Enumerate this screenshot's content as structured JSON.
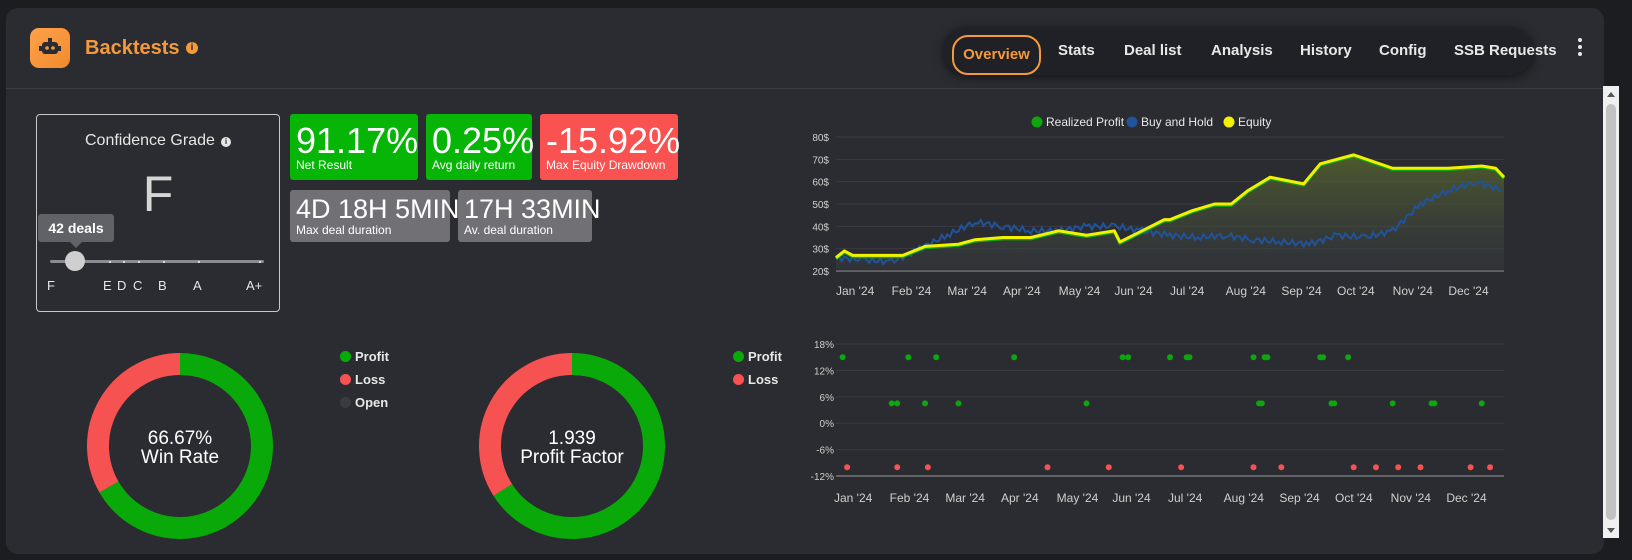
{
  "header": {
    "title": "Backtests",
    "info_icon": "info-icon",
    "nav_tabs": [
      {
        "label": "Overview",
        "active": true
      },
      {
        "label": "Stats"
      },
      {
        "label": "Deal list"
      },
      {
        "label": "Analysis"
      },
      {
        "label": "History"
      },
      {
        "label": "Config"
      },
      {
        "label": "SSB Requests"
      }
    ],
    "accent_color": "#f59a3c"
  },
  "confidence": {
    "title": "Confidence Grade",
    "grade": "F",
    "deals_label": "42 deals",
    "scale_labels": [
      "F",
      "E",
      "D",
      "C",
      "B",
      "A",
      "A+"
    ]
  },
  "metrics": [
    {
      "value": "91.17%",
      "label": "Net Result",
      "color": "#07b507"
    },
    {
      "value": "0.25%",
      "label": "Avg daily return",
      "color": "#07b507"
    },
    {
      "value": "-15.92%",
      "label": "Max Equity Drawdown",
      "color": "#fa5151"
    },
    {
      "value": "4D 18H 5MIN",
      "label": "Max deal duration",
      "color": "#717175"
    },
    {
      "value": "17H 33MIN",
      "label": "Av. deal duration",
      "color": "#717175"
    }
  ],
  "win_rate": {
    "value_text": "66.67%",
    "label": "Win Rate",
    "profit_fraction": 0.6667,
    "legend": [
      {
        "label": "Profit",
        "color": "#09a909"
      },
      {
        "label": "Loss",
        "color": "#f75252"
      },
      {
        "label": "Open",
        "color": "#3a3b3f"
      }
    ]
  },
  "profit_factor": {
    "value_text": "1.939",
    "label": "Profit Factor",
    "profit_fraction": 0.66,
    "legend": [
      {
        "label": "Profit",
        "color": "#09a909"
      },
      {
        "label": "Loss",
        "color": "#f75252"
      }
    ]
  },
  "chart_data": [
    {
      "type": "line",
      "legend": [
        {
          "name": "Realized Profit",
          "color": "#0ca70c"
        },
        {
          "name": "Buy and Hold",
          "color": "#21539b"
        },
        {
          "name": "Equity",
          "color": "#f2f200"
        }
      ],
      "legend_position": "top-center",
      "y_ticks": [
        "80$",
        "70$",
        "60$",
        "50$",
        "40$",
        "30$",
        "20$"
      ],
      "x_ticks": [
        "Jan '24",
        "Feb '24",
        "Mar '24",
        "Apr '24",
        "May '24",
        "Jun '24",
        "Jul '24",
        "Aug '24",
        "Sep '24",
        "Oct '24",
        "Nov '24",
        "Dec '24"
      ],
      "ylim": [
        20,
        80
      ],
      "xlim": [
        0,
        12
      ],
      "grid": true,
      "series": [
        {
          "name": "Equity",
          "x": [
            0,
            0.15,
            0.3,
            1.2,
            1.4,
            1.6,
            2.2,
            2.5,
            3.0,
            3.5,
            4.0,
            4.5,
            5.0,
            5.1,
            5.9,
            6.0,
            6.4,
            6.8,
            7.1,
            7.4,
            7.8,
            8.4,
            8.7,
            9.0,
            9.3,
            10.0,
            10.2,
            11.0,
            11.6,
            11.85,
            12.0
          ],
          "values": [
            26,
            29,
            27,
            27,
            29,
            31,
            32,
            34,
            35,
            35,
            38,
            36,
            38,
            33,
            43,
            43,
            47,
            50,
            50,
            56,
            62,
            59,
            68,
            70,
            72,
            66,
            66,
            66,
            67,
            66,
            62
          ]
        },
        {
          "name": "Buy and Hold",
          "x": [
            0,
            0.5,
            1.0,
            1.5,
            2.0,
            2.5,
            3.0,
            3.5,
            4.0,
            4.5,
            5.0,
            5.5,
            6.0,
            6.5,
            7.0,
            7.5,
            8.0,
            8.5,
            9.0,
            9.5,
            10.0,
            10.5,
            11.0,
            11.5,
            12.0
          ],
          "values": [
            26,
            25,
            24,
            30,
            36,
            42,
            40,
            38,
            38,
            40,
            40,
            38,
            36,
            35,
            36,
            34,
            33,
            32,
            36,
            35,
            38,
            50,
            56,
            60,
            56
          ]
        }
      ]
    },
    {
      "type": "scatter",
      "y_ticks": [
        "18%",
        "12%",
        "6%",
        "0%",
        "-6%",
        "-12%"
      ],
      "x_ticks": [
        "Jan '24",
        "Feb '24",
        "Mar '24",
        "Apr '24",
        "May '24",
        "Jun '24",
        "Jul '24",
        "Aug '24",
        "Sep '24",
        "Oct '24",
        "Nov '24",
        "Dec '24"
      ],
      "ylim": [
        -12,
        18
      ],
      "xlim": [
        0,
        12
      ],
      "grid": true,
      "series": [
        {
          "name": "Profit",
          "color": "#0ca70c",
          "points": [
            [
              0.12,
              15
            ],
            [
              1.3,
              15
            ],
            [
              1.8,
              15
            ],
            [
              3.2,
              15
            ],
            [
              5.15,
              15
            ],
            [
              5.25,
              15
            ],
            [
              6.0,
              15
            ],
            [
              6.3,
              15
            ],
            [
              6.35,
              15
            ],
            [
              7.5,
              15
            ],
            [
              7.7,
              15
            ],
            [
              7.75,
              15
            ],
            [
              8.7,
              15
            ],
            [
              8.75,
              15
            ],
            [
              9.2,
              15
            ],
            [
              1.0,
              4.5
            ],
            [
              1.1,
              4.5
            ],
            [
              1.6,
              4.5
            ],
            [
              2.2,
              4.5
            ],
            [
              4.5,
              4.5
            ],
            [
              7.6,
              4.5
            ],
            [
              7.65,
              4.5
            ],
            [
              8.9,
              4.5
            ],
            [
              8.95,
              4.5
            ],
            [
              10.0,
              4.5
            ],
            [
              10.7,
              4.5
            ],
            [
              10.75,
              4.5
            ],
            [
              11.6,
              4.5
            ]
          ]
        },
        {
          "name": "Loss",
          "color": "#f75252",
          "points": [
            [
              0.2,
              -10
            ],
            [
              1.1,
              -10
            ],
            [
              1.65,
              -10
            ],
            [
              3.8,
              -10
            ],
            [
              4.9,
              -10
            ],
            [
              6.2,
              -10
            ],
            [
              7.5,
              -10
            ],
            [
              8.0,
              -10
            ],
            [
              9.3,
              -10
            ],
            [
              9.7,
              -10
            ],
            [
              10.1,
              -10
            ],
            [
              10.5,
              -10
            ],
            [
              11.4,
              -10
            ],
            [
              11.75,
              -10
            ]
          ]
        }
      ]
    }
  ]
}
